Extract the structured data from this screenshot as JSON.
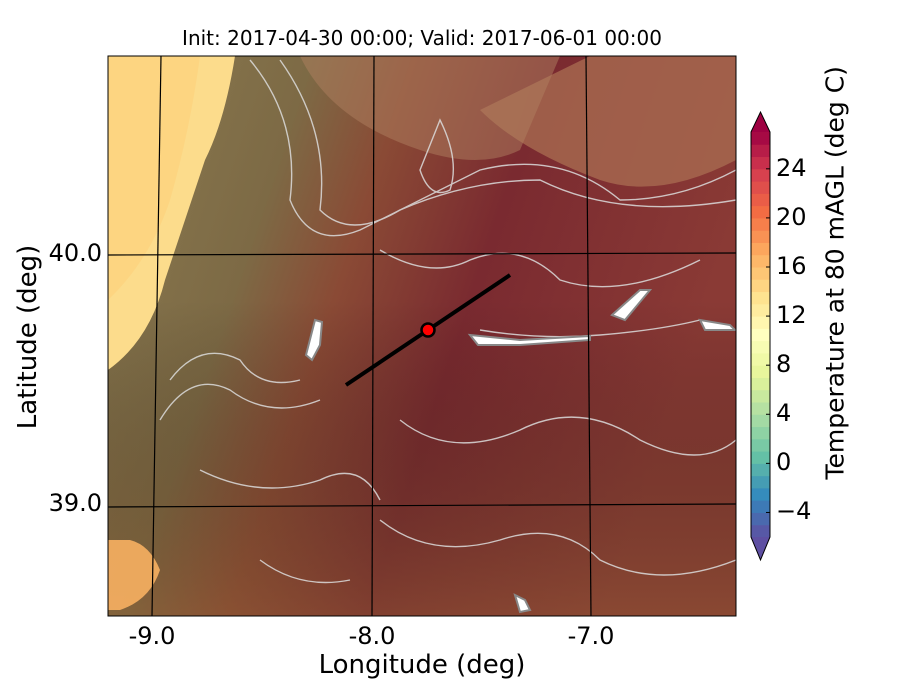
{
  "title": "Init: 2017-04-30 00:00; Valid: 2017-06-01 00:00",
  "xlabel": "Longitude (deg)",
  "ylabel": "Latitude (deg)",
  "x_ticks": [
    "-9.0",
    "-8.0",
    "-7.0"
  ],
  "y_ticks": [
    "40.0",
    "39.0"
  ],
  "colorbar": {
    "label": "Temperature at 80 mAGL (deg C)",
    "ticks": [
      "24",
      "20",
      "16",
      "12",
      "8",
      "4",
      "0",
      "−4"
    ],
    "range": [
      -6,
      27
    ],
    "colormap": "Spectral_r",
    "extend": "both"
  },
  "map": {
    "lon_range": [
      -9.25,
      -6.35
    ],
    "lat_range": [
      38.45,
      40.8
    ],
    "transect": {
      "start": [
        -8.1,
        39.45
      ],
      "end": [
        -7.35,
        39.9
      ]
    },
    "marker": {
      "lon": -7.75,
      "lat": 39.69,
      "color": "#ff0000"
    }
  }
}
